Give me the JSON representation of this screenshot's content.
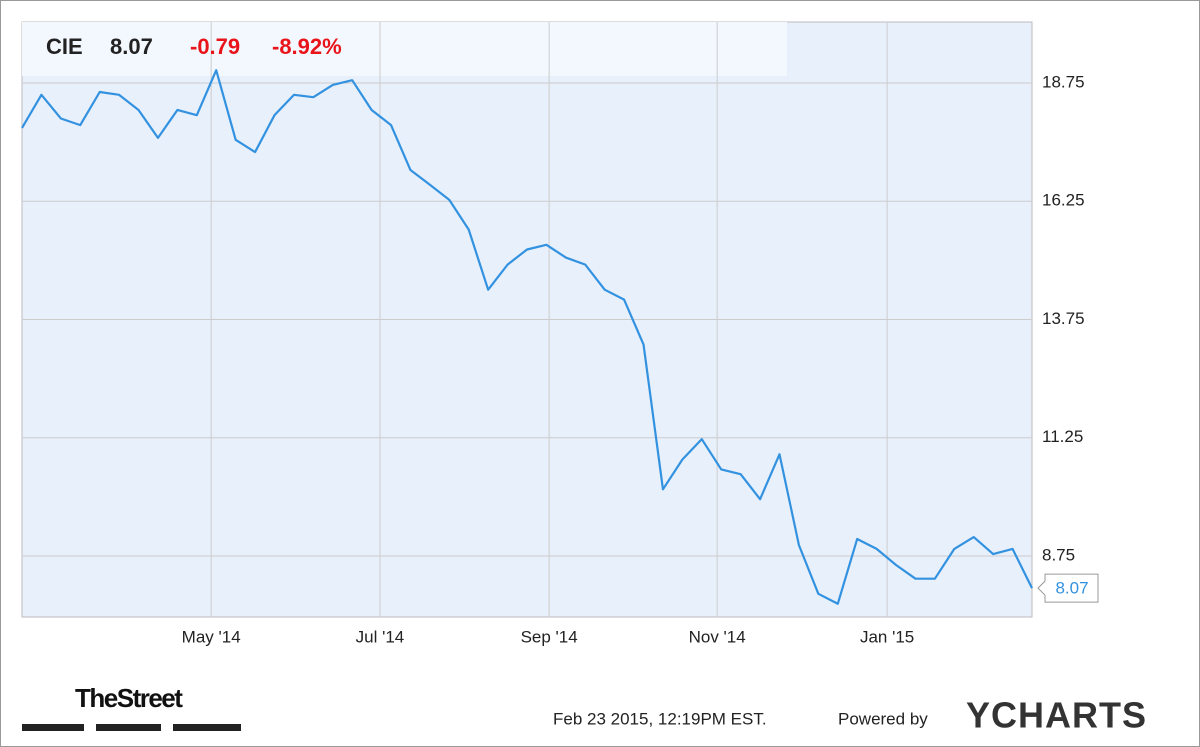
{
  "chart_data": {
    "type": "line",
    "ticker": "CIE",
    "change": "-0.79",
    "change_percent": "-8.92%",
    "values": [
      17.8,
      18.5,
      18.0,
      17.86,
      18.56,
      18.5,
      18.18,
      17.59,
      18.18,
      18.07,
      19.02,
      17.55,
      17.29,
      18.07,
      18.5,
      18.45,
      18.71,
      18.81,
      18.18,
      17.86,
      16.91,
      16.6,
      16.28,
      15.65,
      14.38,
      14.91,
      15.23,
      15.33,
      15.06,
      14.91,
      14.38,
      14.17,
      13.22,
      10.16,
      10.79,
      11.22,
      10.58,
      10.48,
      9.95,
      10.9,
      8.98,
      7.95,
      7.74,
      9.11,
      8.9,
      8.56,
      8.27,
      8.27,
      8.9,
      9.15,
      8.79,
      8.9,
      8.07
    ],
    "color": "#3392e0",
    "xlim": [
      0,
      52
    ],
    "xticks": [
      {
        "value": 9.74,
        "label": "May '14"
      },
      {
        "value": 18.43,
        "label": "Jul '14"
      },
      {
        "value": 27.14,
        "label": "Sep '14"
      },
      {
        "value": 35.79,
        "label": "Nov '14"
      },
      {
        "value": 44.54,
        "label": "Jan '15"
      }
    ],
    "ylim": [
      7.46,
      20.04
    ],
    "yticks": [
      8.75,
      11.25,
      13.75,
      16.25,
      18.75
    ],
    "grid": true,
    "timestamp": "Feb 23 2015, 12:19PM EST.",
    "powered_by": "Powered by",
    "brand": "YCHARTS",
    "source": "TheStreet"
  }
}
